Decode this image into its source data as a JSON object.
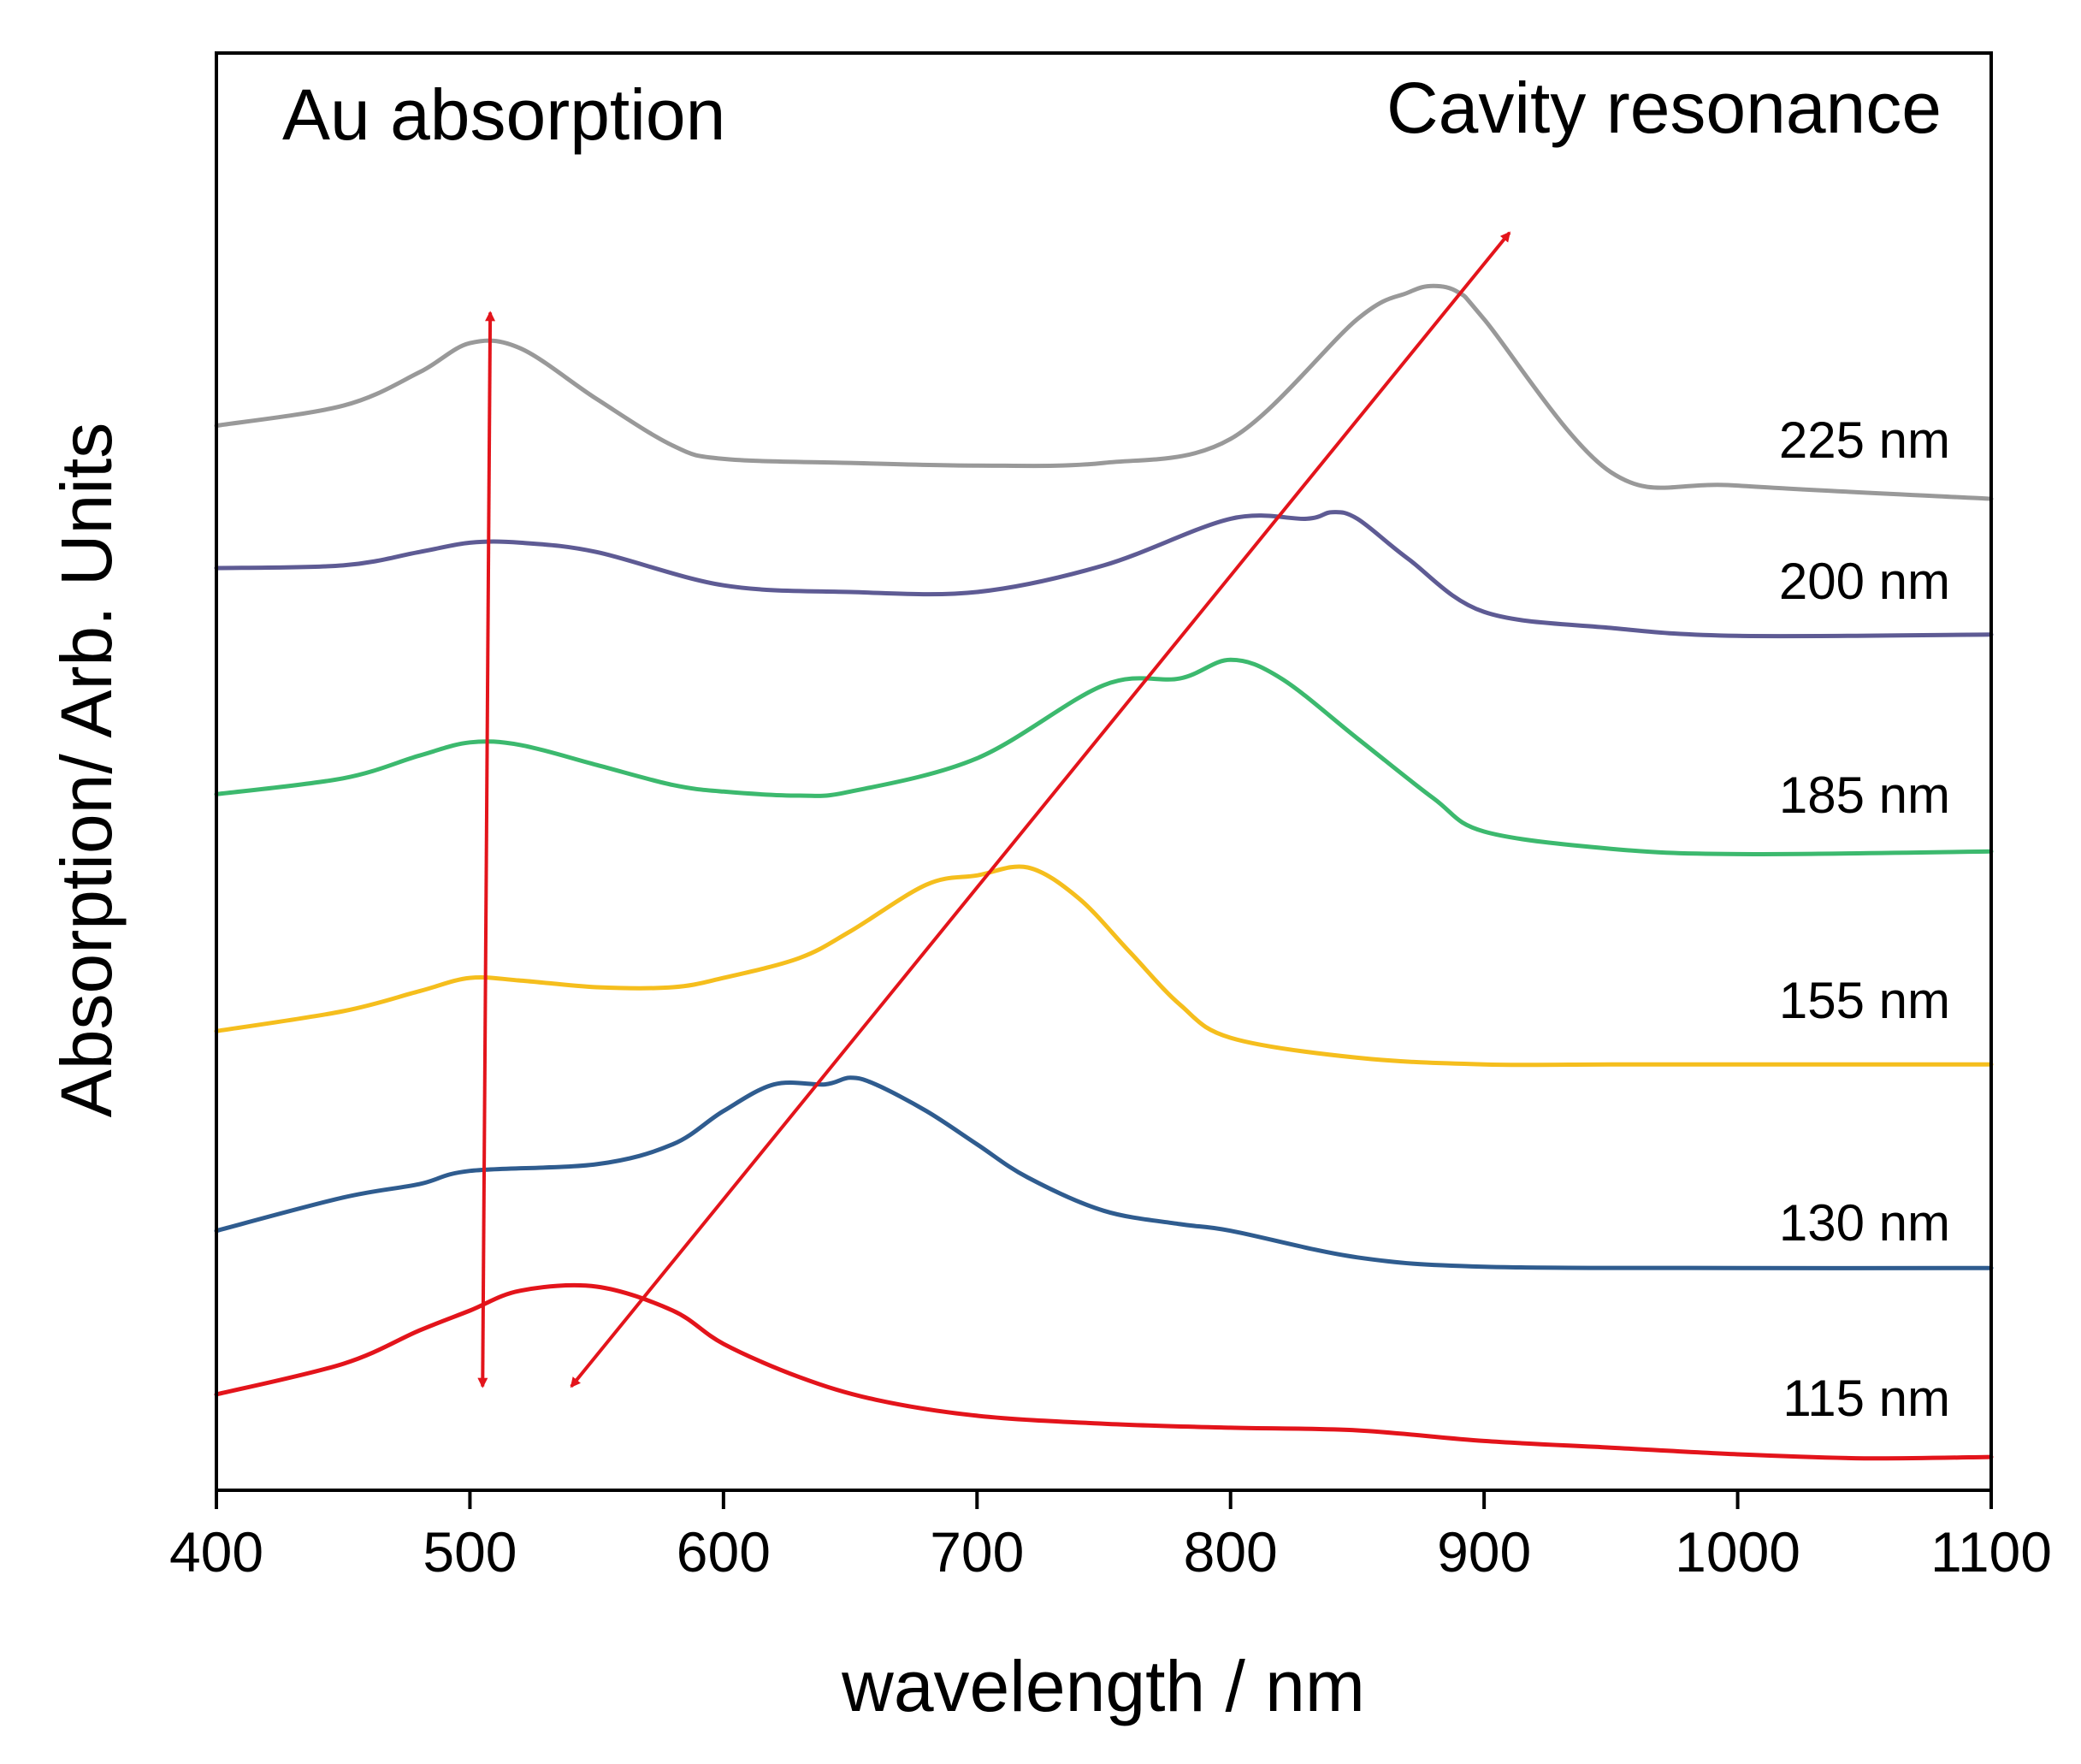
{
  "chart_data": {
    "type": "line",
    "title": "",
    "xlabel": "wavelength / nm",
    "ylabel": "Absorption/ Arb. Units",
    "xlim": [
      400,
      1100
    ],
    "ylim": [
      0,
      10.8
    ],
    "x_ticks": [
      400,
      500,
      600,
      700,
      800,
      900,
      1000,
      1100
    ],
    "y_ticks_shown": false,
    "grid": false,
    "legend": "none (series labeled inline at right)",
    "annotations": [
      {
        "text": "Au absorption",
        "anchor": "top-left"
      },
      {
        "text": "Cavity resonance",
        "anchor": "top-right"
      }
    ],
    "arrows": [
      {
        "name": "au-absorption-arrow",
        "description": "double-headed vertical arrow at ~505 nm",
        "from": [
          505,
          0.78
        ],
        "to": [
          508,
          8.85
        ]
      },
      {
        "name": "cavity-resonance-arrow",
        "description": "double-headed diagonal arrow tracking the cavity resonance shift",
        "from": [
          540,
          0.78
        ],
        "to": [
          910,
          9.45
        ]
      }
    ],
    "series": [
      {
        "name": "115 nm",
        "label": "115 nm",
        "color": "#e3141b",
        "x": [
          400,
          450,
          480,
          500,
          520,
          550,
          580,
          600,
          630,
          660,
          700,
          750,
          800,
          850,
          900,
          950,
          1000,
          1050,
          1100
        ],
        "y": [
          0.72,
          0.95,
          1.2,
          1.35,
          1.5,
          1.53,
          1.35,
          1.1,
          0.85,
          0.68,
          0.56,
          0.5,
          0.47,
          0.45,
          0.37,
          0.32,
          0.27,
          0.24,
          0.25
        ]
      },
      {
        "name": "130 nm",
        "label": "130 nm",
        "color": "#2f5c8f",
        "x": [
          400,
          450,
          480,
          500,
          550,
          580,
          600,
          620,
          640,
          650,
          660,
          680,
          700,
          720,
          750,
          780,
          800,
          850,
          900,
          1000,
          1100
        ],
        "y": [
          1.95,
          2.2,
          2.3,
          2.4,
          2.45,
          2.6,
          2.85,
          3.05,
          3.05,
          3.1,
          3.05,
          2.85,
          2.6,
          2.35,
          2.1,
          2.0,
          1.95,
          1.75,
          1.68,
          1.67,
          1.67
        ]
      },
      {
        "name": "155 nm",
        "label": "155 nm",
        "color": "#f5be1d",
        "x": [
          400,
          450,
          480,
          500,
          520,
          550,
          580,
          600,
          630,
          650,
          680,
          700,
          720,
          740,
          760,
          780,
          800,
          850,
          900,
          950,
          1000,
          1100
        ],
        "y": [
          3.45,
          3.6,
          3.75,
          3.85,
          3.83,
          3.78,
          3.78,
          3.85,
          4.0,
          4.2,
          4.55,
          4.62,
          4.68,
          4.45,
          4.05,
          3.65,
          3.4,
          3.25,
          3.2,
          3.2,
          3.2,
          3.2
        ]
      },
      {
        "name": "185 nm",
        "label": "185 nm",
        "color": "#3cb96e",
        "x": [
          400,
          450,
          480,
          500,
          520,
          550,
          580,
          600,
          630,
          650,
          700,
          750,
          780,
          800,
          820,
          850,
          880,
          900,
          950,
          1000,
          1100
        ],
        "y": [
          5.23,
          5.35,
          5.52,
          5.62,
          5.6,
          5.45,
          5.3,
          5.25,
          5.22,
          5.25,
          5.5,
          6.05,
          6.1,
          6.24,
          6.1,
          5.65,
          5.2,
          4.95,
          4.82,
          4.78,
          4.8
        ]
      },
      {
        "name": "200 nm",
        "label": "200 nm",
        "color": "#5e5b94",
        "x": [
          400,
          450,
          480,
          500,
          520,
          550,
          600,
          650,
          700,
          750,
          800,
          830,
          840,
          850,
          870,
          900,
          950,
          1000,
          1100
        ],
        "y": [
          6.93,
          6.95,
          7.05,
          7.12,
          7.12,
          7.05,
          6.8,
          6.75,
          6.75,
          6.95,
          7.3,
          7.3,
          7.35,
          7.3,
          7.0,
          6.6,
          6.48,
          6.42,
          6.43
        ]
      },
      {
        "name": "225 nm",
        "label": "225 nm",
        "color": "#999999",
        "x": [
          400,
          450,
          480,
          500,
          520,
          550,
          580,
          600,
          650,
          700,
          750,
          800,
          850,
          870,
          880,
          890,
          900,
          950,
          1000,
          1100
        ],
        "y": [
          8.0,
          8.15,
          8.4,
          8.62,
          8.58,
          8.2,
          7.85,
          7.75,
          7.72,
          7.7,
          7.72,
          7.9,
          8.8,
          9.0,
          9.05,
          9.0,
          8.8,
          7.65,
          7.55,
          7.45
        ]
      }
    ]
  }
}
